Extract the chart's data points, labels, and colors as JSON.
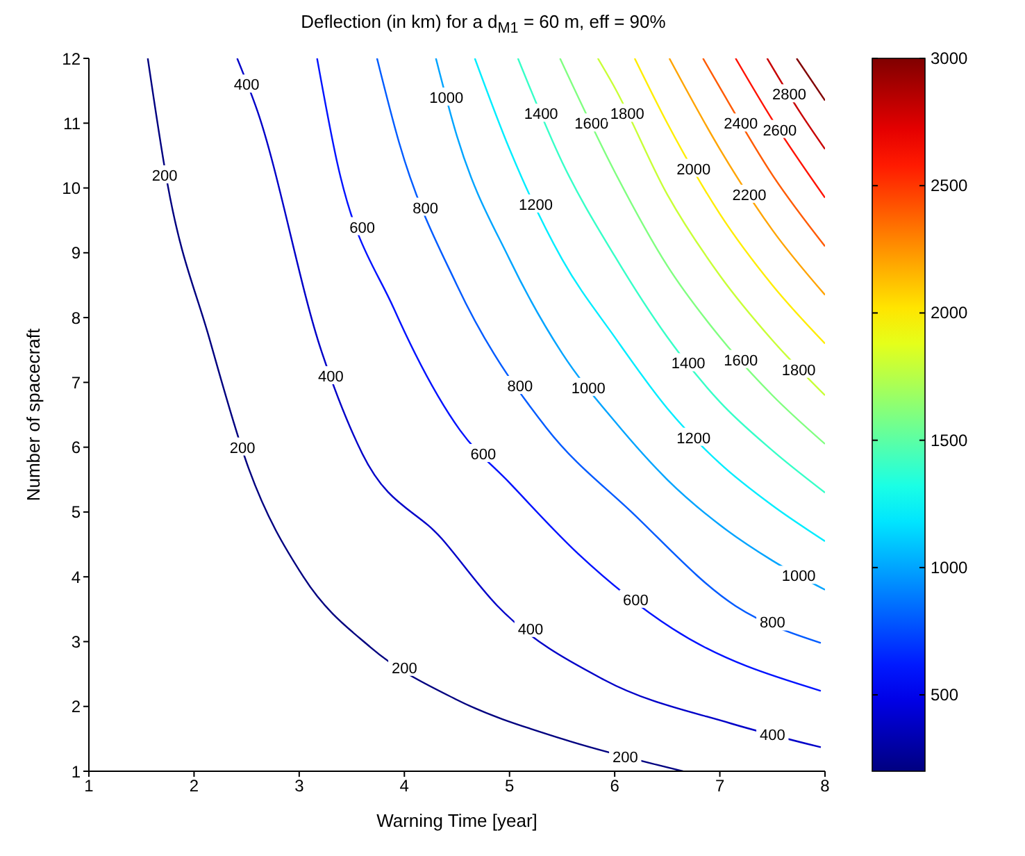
{
  "chart_data": {
    "type": "line",
    "title": "Deflection (in km) for a d$_{M1}$ = 60 m, eff = 90%",
    "xlabel": "Warning Time [year]",
    "ylabel": "Number of spacecraft",
    "xlim": [
      1,
      8
    ],
    "ylim": [
      1,
      12
    ],
    "xticks": [
      1,
      2,
      3,
      4,
      5,
      6,
      7,
      8
    ],
    "yticks": [
      1,
      2,
      3,
      4,
      5,
      6,
      7,
      8,
      9,
      10,
      11,
      12
    ],
    "clim": [
      200,
      3000
    ],
    "cticks": [
      500,
      1000,
      1500,
      2000,
      2500,
      3000
    ],
    "series": [
      {
        "color": "#000080",
        "x": [
          1.56,
          1.75,
          2.14,
          2.52,
          3.04,
          3.68,
          4.49,
          5.5,
          6.4,
          6.65
        ],
        "values": [
          12,
          10.04,
          7.71,
          5.67,
          4.0,
          2.91,
          2.11,
          1.5,
          1.1,
          1.0
        ]
      },
      {
        "color": "#0000c8",
        "x": [
          2.41,
          2.6,
          3.21,
          3.6,
          4.36,
          4.88,
          5.9,
          7.1,
          7.96
        ],
        "values": [
          12,
          11.2,
          7.49,
          5.9,
          4.58,
          3.56,
          2.41,
          1.74,
          1.37
        ]
      },
      {
        "color": "#0012ff",
        "x": [
          3.17,
          3.36,
          3.9,
          4.53,
          5.0,
          5.65,
          6.55,
          7.96
        ],
        "values": [
          12,
          10.4,
          8.14,
          6.26,
          5.45,
          4.36,
          3.2,
          2.24
        ]
      },
      {
        "color": "#005bff",
        "x": [
          3.74,
          3.95,
          4.5,
          5.35,
          6.16,
          7.15,
          7.96
        ],
        "values": [
          12,
          10.7,
          8.5,
          6.3,
          5.0,
          3.55,
          2.98
        ]
      },
      {
        "color": "#00a4ff",
        "x": [
          4.3,
          4.5,
          5,
          5.5,
          6,
          6.5,
          7,
          7.5,
          8
        ],
        "values": [
          12,
          10.8,
          8.9,
          7.45,
          6.4,
          5.5,
          4.8,
          4.25,
          3.8
        ]
      },
      {
        "color": "#00edff",
        "x": [
          4.67,
          5,
          5.5,
          6,
          6.5,
          7,
          7.5,
          8
        ],
        "values": [
          12,
          10.6,
          8.9,
          7.7,
          6.6,
          5.75,
          5.1,
          4.55
        ]
      },
      {
        "color": "#37ffc8",
        "x": [
          5.08,
          5.5,
          6,
          6.5,
          7,
          7.5,
          8
        ],
        "values": [
          12,
          10.4,
          8.95,
          7.7,
          6.7,
          5.95,
          5.3
        ]
      },
      {
        "color": "#80ff80",
        "x": [
          5.48,
          6,
          6.5,
          7,
          7.5,
          8
        ],
        "values": [
          12,
          10.25,
          8.8,
          7.7,
          6.8,
          6.05
        ]
      },
      {
        "color": "#c8ff37",
        "x": [
          5.84,
          6,
          6.5,
          7,
          7.5,
          8
        ],
        "values": [
          12,
          11.55,
          9.9,
          8.65,
          7.65,
          6.8
        ]
      },
      {
        "color": "#ffed00",
        "x": [
          6.19,
          6.5,
          7,
          7.5,
          8
        ],
        "values": [
          12,
          11.0,
          9.6,
          8.5,
          7.6
        ]
      },
      {
        "color": "#ffa400",
        "x": [
          6.52,
          7,
          7.5,
          8
        ],
        "values": [
          12,
          10.6,
          9.35,
          8.35
        ]
      },
      {
        "color": "#ff5b00",
        "x": [
          6.84,
          7,
          7.5,
          8
        ],
        "values": [
          12,
          11.55,
          10.2,
          9.1
        ]
      },
      {
        "color": "#ff1200",
        "x": [
          7.15,
          7.5,
          8
        ],
        "values": [
          12,
          11.05,
          9.85
        ]
      },
      {
        "color": "#c80000",
        "x": [
          7.45,
          7.75,
          8
        ],
        "values": [
          12,
          11.2,
          10.6
        ]
      },
      {
        "color": "#800000",
        "x": [
          7.73,
          8
        ],
        "values": [
          12,
          11.35
        ]
      }
    ],
    "annotations": [
      {
        "text": "200",
        "x": 1.72,
        "y": 10.2
      },
      {
        "text": "200",
        "x": 2.46,
        "y": 6.0
      },
      {
        "text": "200",
        "x": 4.0,
        "y": 2.6
      },
      {
        "text": "200",
        "x": 6.1,
        "y": 1.23
      },
      {
        "text": "400",
        "x": 2.5,
        "y": 11.6
      },
      {
        "text": "400",
        "x": 3.3,
        "y": 7.1
      },
      {
        "text": "400",
        "x": 5.2,
        "y": 3.2
      },
      {
        "text": "400",
        "x": 7.5,
        "y": 1.57
      },
      {
        "text": "600",
        "x": 3.6,
        "y": 9.4
      },
      {
        "text": "600",
        "x": 4.75,
        "y": 5.9
      },
      {
        "text": "600",
        "x": 6.2,
        "y": 3.65
      },
      {
        "text": "800",
        "x": 4.2,
        "y": 9.7
      },
      {
        "text": "800",
        "x": 5.1,
        "y": 6.95
      },
      {
        "text": "800",
        "x": 7.5,
        "y": 3.3
      },
      {
        "text": "1000",
        "x": 4.4,
        "y": 11.4
      },
      {
        "text": "1000",
        "x": 5.75,
        "y": 6.92
      },
      {
        "text": "1000",
        "x": 7.75,
        "y": 4.02
      },
      {
        "text": "1200",
        "x": 5.25,
        "y": 9.75
      },
      {
        "text": "1200",
        "x": 6.75,
        "y": 6.15
      },
      {
        "text": "1400",
        "x": 5.3,
        "y": 11.15
      },
      {
        "text": "1400",
        "x": 6.7,
        "y": 7.3
      },
      {
        "text": "1600",
        "x": 5.78,
        "y": 11.0
      },
      {
        "text": "1600",
        "x": 7.2,
        "y": 7.35
      },
      {
        "text": "1800",
        "x": 6.12,
        "y": 11.15
      },
      {
        "text": "1800",
        "x": 7.75,
        "y": 7.2
      },
      {
        "text": "2000",
        "x": 6.75,
        "y": 10.3
      },
      {
        "text": "2200",
        "x": 7.28,
        "y": 9.9
      },
      {
        "text": "2400",
        "x": 7.2,
        "y": 11.0
      },
      {
        "text": "2600",
        "x": 7.57,
        "y": 10.9
      },
      {
        "text": "2800",
        "x": 7.66,
        "y": 11.45
      }
    ]
  }
}
